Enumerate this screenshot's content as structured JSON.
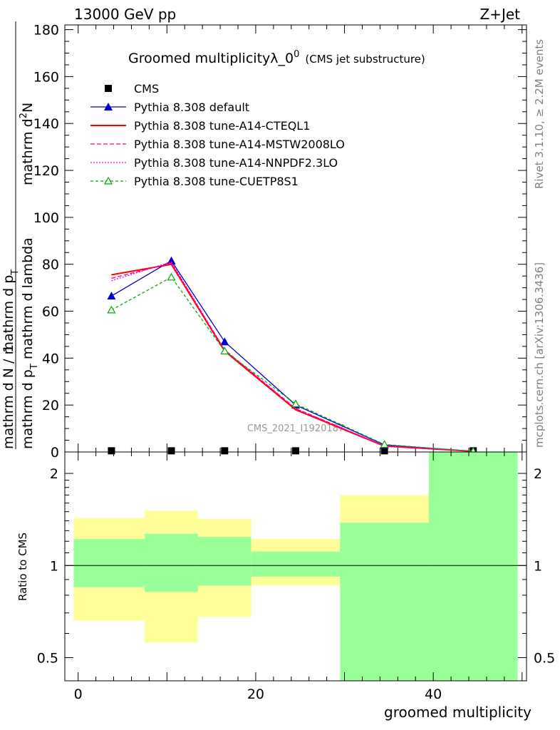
{
  "header": {
    "left": "13000 GeV pp",
    "right": "Z+Jet"
  },
  "side": {
    "rivet": "Rivet 3.1.10, ≥ 2.2M events",
    "mcplots": "mcplots.cern.ch [arXiv:1306.3436]"
  },
  "chart_data": [
    {
      "type": "line",
      "title": "Groomed multiplicityλ_0",
      "title_sup": "0",
      "title_suffix": "(CMS jet substructure)",
      "watermark": "CMS_2021_I1920187",
      "ylabel_numerator": "mathrm d",
      "ylabel_numerator_sup": "2",
      "ylabel_numerator_tail": "N",
      "ylabel_denominator": "mathrm d p",
      "ylabel_denominator_sub": "T",
      "ylabel_denominator_tail": " mathrm d lambda",
      "ylabel_prefix_num": "1",
      "ylabel_prefix_den": "mathrm d N / mathrm d p",
      "ylabel_prefix_den_sub": "T",
      "ylim": [
        0,
        182
      ],
      "y_ticks": [
        "0",
        "20",
        "40",
        "60",
        "80",
        "100",
        "120",
        "140",
        "160",
        "180"
      ],
      "x": [
        3.75,
        10.5,
        16.5,
        24.5,
        34.5,
        44.5
      ],
      "series": [
        {
          "name": "CMS",
          "color": "#000000",
          "marker": "square",
          "values": [
            0.5,
            0.5,
            0.5,
            0.5,
            0.5,
            0.5
          ]
        },
        {
          "name": "Pythia 8.308 default",
          "color": "#0000cc",
          "marker": "triangle",
          "values": [
            66.5,
            81.5,
            47.0,
            20.0,
            3.0,
            0.3
          ]
        },
        {
          "name": "Pythia 8.308 tune-A14-CTEQL1",
          "color": "#ff0000",
          "marker": "none",
          "values": [
            75.5,
            80.0,
            43.0,
            18.0,
            2.5,
            0.3
          ]
        },
        {
          "name": "Pythia 8.308 tune-A14-MSTW2008LO",
          "color": "#ff0066",
          "marker": "none",
          "dash": "6,3",
          "values": [
            74.0,
            80.5,
            43.5,
            18.5,
            2.6,
            0.3
          ]
        },
        {
          "name": "Pythia 8.308 tune-A14-NNPDF2.3LO",
          "color": "#ee00ee",
          "marker": "none",
          "dash": "2,2",
          "values": [
            73.0,
            81.0,
            43.5,
            18.5,
            2.6,
            0.3
          ]
        },
        {
          "name": "Pythia 8.308 tune-CUETP8S1",
          "color": "#00aa00",
          "marker": "open-triangle",
          "dash": "4,3",
          "values": [
            60.5,
            74.5,
            43.0,
            20.5,
            3.2,
            0.3
          ]
        }
      ]
    },
    {
      "type": "ratio",
      "ylabel": "Ratio to CMS",
      "xlabel": "groomed multiplicity",
      "xlim": [
        -1.5,
        50.5
      ],
      "ylim": [
        0.42,
        2.35
      ],
      "log_y": true,
      "y_ticks": [
        "0.5",
        "1",
        "2"
      ],
      "x_ticks": [
        "0",
        "20",
        "40"
      ],
      "bins": [
        {
          "lo": -0.5,
          "hi": 7.5,
          "yellow": [
            0.66,
            1.43
          ],
          "green": [
            0.85,
            1.22
          ]
        },
        {
          "lo": 7.5,
          "hi": 13.5,
          "yellow": [
            0.56,
            1.51
          ],
          "green": [
            0.82,
            1.27
          ]
        },
        {
          "lo": 13.5,
          "hi": 19.5,
          "yellow": [
            0.68,
            1.42
          ],
          "green": [
            0.86,
            1.24
          ]
        },
        {
          "lo": 19.5,
          "hi": 29.5,
          "yellow": [
            0.86,
            1.22
          ],
          "green": [
            0.92,
            1.11
          ]
        },
        {
          "lo": 29.5,
          "hi": 39.5,
          "yellow": [
            0.42,
            1.7
          ],
          "green": [
            0.42,
            1.38
          ]
        },
        {
          "lo": 39.5,
          "hi": 49.5,
          "yellow": [
            0.42,
            2.35
          ],
          "green": [
            0.42,
            2.35
          ]
        }
      ]
    }
  ]
}
